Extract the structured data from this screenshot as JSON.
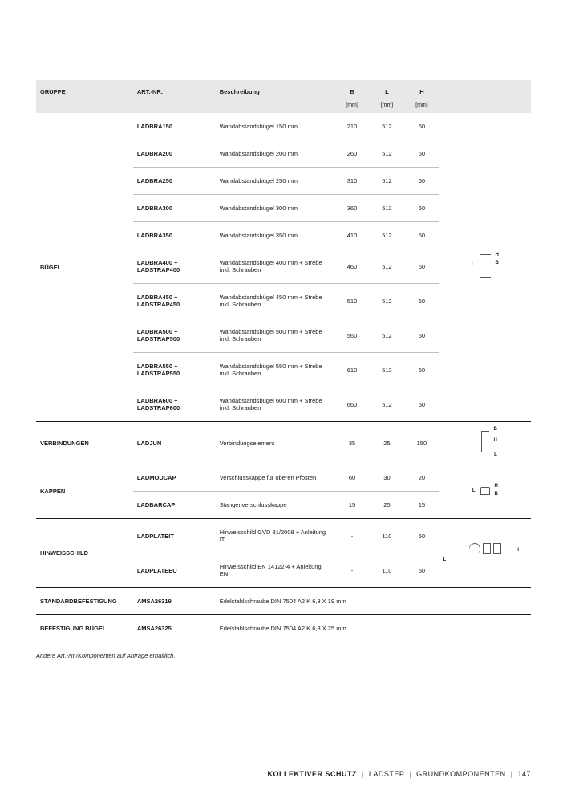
{
  "headers": {
    "gruppe": "GRUPPE",
    "art": "ART.-NR.",
    "besch": "Beschreibung",
    "b": "B",
    "l": "L",
    "h": "H",
    "unit": "[mm]"
  },
  "groups": [
    {
      "name": "BÜGEL",
      "diagram": {
        "type": "bracket",
        "labels": [
          "L",
          "H",
          "B"
        ]
      },
      "rows": [
        {
          "art": "LADBRA150",
          "besch": "Wandabstandsbügel 150 mm",
          "b": "210",
          "l": "512",
          "h": "60"
        },
        {
          "art": "LADBRA200",
          "besch": "Wandabstandsbügel 200 mm",
          "b": "260",
          "l": "512",
          "h": "60"
        },
        {
          "art": "LADBRA250",
          "besch": "Wandabstandsbügel 250 mm",
          "b": "310",
          "l": "512",
          "h": "60"
        },
        {
          "art": "LADBRA300",
          "besch": "Wandabstandsbügel 300 mm",
          "b": "360",
          "l": "512",
          "h": "60"
        },
        {
          "art": "LADBRA350",
          "besch": "Wandabstandsbügel 350 mm",
          "b": "410",
          "l": "512",
          "h": "60"
        },
        {
          "art": "LADBRA400 + LADSTRAP400",
          "besch": "Wandabstandsbügel 400 mm + Strebe inkl. Schrauben",
          "b": "460",
          "l": "512",
          "h": "60"
        },
        {
          "art": "LADBRA450 + LADSTRAP450",
          "besch": "Wandabstandsbügel 450 mm + Strebe inkl. Schrauben",
          "b": "510",
          "l": "512",
          "h": "60"
        },
        {
          "art": "LADBRA500 + LADSTRAP500",
          "besch": "Wandabstandsbügel 500 mm + Strebe inkl. Schrauben",
          "b": "560",
          "l": "512",
          "h": "60"
        },
        {
          "art": "LADBRA550 + LADSTRAP550",
          "besch": "Wandabstandsbügel 550 mm + Strebe inkl. Schrauben",
          "b": "610",
          "l": "512",
          "h": "60"
        },
        {
          "art": "LADBRA600 + LADSTRAP600",
          "besch": "Wandabstandsbügel 600 mm + Strebe inkl. Schrauben",
          "b": "660",
          "l": "512",
          "h": "60"
        }
      ]
    },
    {
      "name": "VERBINDUNGEN",
      "diagram": {
        "type": "verb",
        "labels": [
          "B",
          "H",
          "L"
        ]
      },
      "rows": [
        {
          "art": "LADJUN",
          "besch": "Verbindungselement",
          "b": "35",
          "l": "25",
          "h": "150"
        }
      ]
    },
    {
      "name": "KAPPEN",
      "diagram": {
        "type": "cap",
        "labels": [
          "L",
          "H",
          "B"
        ]
      },
      "rows": [
        {
          "art": "LADMODCAP",
          "besch": "Verschlusskappe für oberen Pfosten",
          "b": "60",
          "l": "30",
          "h": "20"
        },
        {
          "art": "LADBARCAP",
          "besch": "Stangenverschlusskappe",
          "b": "15",
          "l": "25",
          "h": "15"
        }
      ]
    },
    {
      "name": "HINWEISSCHILD",
      "diagram": {
        "type": "sign",
        "labels": [
          "L",
          "H"
        ]
      },
      "rows": [
        {
          "art": "LADPLATEIT",
          "besch": "Hinweisschild GVD 81/2008 + Anleitung IT",
          "b": "-",
          "l": "110",
          "h": "50"
        },
        {
          "art": "LADPLATEEU",
          "besch": "Hinweisschild EN 14122-4 + Anleitung EN",
          "b": "-",
          "l": "110",
          "h": "50"
        }
      ]
    },
    {
      "name": "STANDARDBEFESTIGUNG",
      "diagram": null,
      "rows": [
        {
          "art": "AMSA26319",
          "besch": "Edelstahlschraube DIN 7504 A2 K 6,3 X 19 mm",
          "b": "",
          "l": "",
          "h": "",
          "span": true
        }
      ]
    },
    {
      "name": "BEFESTIGUNG BÜGEL",
      "diagram": null,
      "rows": [
        {
          "art": "AMSA26325",
          "besch": "Edelstahlschraube DIN 7504 A2 K 6,3 X 25 mm",
          "b": "",
          "l": "",
          "h": "",
          "span": true
        }
      ]
    }
  ],
  "note": "Andere Art.-Nr./Komponenten auf Anfrage erhältlich.",
  "footer": {
    "a": "KOLLEKTIVER SCHUTZ",
    "b": "LADSTEP",
    "c": "GRUNDKOMPONENTEN",
    "page": "147"
  }
}
